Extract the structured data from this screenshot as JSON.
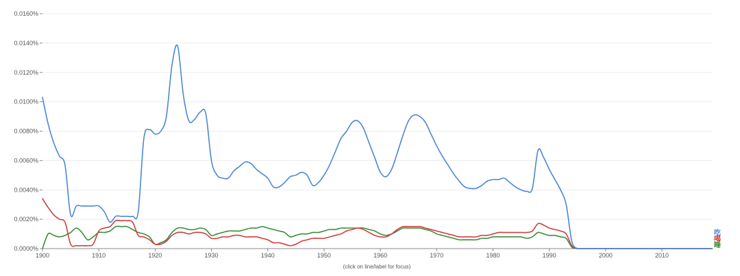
{
  "chart_data": {
    "type": "line",
    "title": "",
    "xlabel": "",
    "ylabel": "",
    "caption": "(click on line/label for focus)",
    "xlim": [
      1900,
      2019
    ],
    "ylim": [
      0,
      0.016
    ],
    "xticks": [
      1900,
      1910,
      1920,
      1930,
      1940,
      1950,
      1960,
      1970,
      1980,
      1990,
      2000,
      2010
    ],
    "xtick_labels": [
      "1900",
      "1910",
      "1920",
      "1930",
      "1940",
      "1950",
      "1960",
      "1970",
      "1980",
      "1990",
      "2000",
      "2010"
    ],
    "yticks": [
      0,
      0.002,
      0.004,
      0.006,
      0.008,
      0.01,
      0.012,
      0.014,
      0.016
    ],
    "ytick_labels": [
      "0.0000%",
      "0.0020%",
      "0.0040%",
      "0.0060%",
      "0.0080%",
      "0.0100%",
      "0.0120%",
      "0.0140%",
      "0.0160%"
    ],
    "grid": true,
    "series": [
      {
        "name": "吃",
        "color": "#4a86d8",
        "points": [
          [
            1900,
            0.0103
          ],
          [
            1901,
            0.0085
          ],
          [
            1902,
            0.0072
          ],
          [
            1903,
            0.0063
          ],
          [
            1904,
            0.0057
          ],
          [
            1905,
            0.0023
          ],
          [
            1906,
            0.0029
          ],
          [
            1907,
            0.0029
          ],
          [
            1908,
            0.0029
          ],
          [
            1909,
            0.0029
          ],
          [
            1910,
            0.0029
          ],
          [
            1911,
            0.0025
          ],
          [
            1912,
            0.0018
          ],
          [
            1913,
            0.0022
          ],
          [
            1914,
            0.0022
          ],
          [
            1915,
            0.0022
          ],
          [
            1916,
            0.0022
          ],
          [
            1917,
            0.0025
          ],
          [
            1918,
            0.0075
          ],
          [
            1919,
            0.0081
          ],
          [
            1920,
            0.0078
          ],
          [
            1921,
            0.008
          ],
          [
            1922,
            0.009
          ],
          [
            1923,
            0.0125
          ],
          [
            1924,
            0.0138
          ],
          [
            1925,
            0.0105
          ],
          [
            1926,
            0.0087
          ],
          [
            1927,
            0.0088
          ],
          [
            1928,
            0.0093
          ],
          [
            1929,
            0.0092
          ],
          [
            1930,
            0.006
          ],
          [
            1931,
            0.005
          ],
          [
            1932,
            0.0048
          ],
          [
            1933,
            0.0048
          ],
          [
            1934,
            0.0053
          ],
          [
            1935,
            0.0056
          ],
          [
            1936,
            0.0059
          ],
          [
            1937,
            0.0058
          ],
          [
            1938,
            0.0054
          ],
          [
            1939,
            0.0051
          ],
          [
            1940,
            0.0048
          ],
          [
            1941,
            0.0042
          ],
          [
            1942,
            0.0042
          ],
          [
            1943,
            0.0045
          ],
          [
            1944,
            0.0049
          ],
          [
            1945,
            0.005
          ],
          [
            1946,
            0.0052
          ],
          [
            1947,
            0.005
          ],
          [
            1948,
            0.0043
          ],
          [
            1949,
            0.0045
          ],
          [
            1950,
            0.005
          ],
          [
            1951,
            0.0057
          ],
          [
            1952,
            0.0066
          ],
          [
            1953,
            0.0075
          ],
          [
            1954,
            0.008
          ],
          [
            1955,
            0.0086
          ],
          [
            1956,
            0.0087
          ],
          [
            1957,
            0.0082
          ],
          [
            1958,
            0.0072
          ],
          [
            1959,
            0.0062
          ],
          [
            1960,
            0.0052
          ],
          [
            1961,
            0.0049
          ],
          [
            1962,
            0.0054
          ],
          [
            1963,
            0.0065
          ],
          [
            1964,
            0.0077
          ],
          [
            1965,
            0.0087
          ],
          [
            1966,
            0.0091
          ],
          [
            1967,
            0.009
          ],
          [
            1968,
            0.0086
          ],
          [
            1969,
            0.0078
          ],
          [
            1970,
            0.007
          ],
          [
            1971,
            0.0063
          ],
          [
            1972,
            0.0057
          ],
          [
            1973,
            0.0051
          ],
          [
            1974,
            0.0046
          ],
          [
            1975,
            0.0042
          ],
          [
            1976,
            0.0041
          ],
          [
            1977,
            0.0041
          ],
          [
            1978,
            0.0043
          ],
          [
            1979,
            0.0046
          ],
          [
            1980,
            0.0047
          ],
          [
            1981,
            0.0047
          ],
          [
            1982,
            0.0048
          ],
          [
            1983,
            0.0045
          ],
          [
            1984,
            0.0042
          ],
          [
            1985,
            0.004
          ],
          [
            1986,
            0.0039
          ],
          [
            1987,
            0.0041
          ],
          [
            1988,
            0.0067
          ],
          [
            1989,
            0.0062
          ],
          [
            1990,
            0.0054
          ],
          [
            1991,
            0.0047
          ],
          [
            1992,
            0.004
          ],
          [
            1993,
            0.003
          ],
          [
            1994,
            0.0005
          ],
          [
            1995,
            0.0
          ],
          [
            1996,
            0.0
          ],
          [
            1997,
            0.0
          ],
          [
            1998,
            0.0
          ],
          [
            1999,
            0.0
          ],
          [
            2000,
            0.0
          ]
        ]
      },
      {
        "name": "喝",
        "color": "#d23c3c",
        "points": [
          [
            1900,
            0.0034
          ],
          [
            1901,
            0.0028
          ],
          [
            1902,
            0.0023
          ],
          [
            1903,
            0.002
          ],
          [
            1904,
            0.0018
          ],
          [
            1905,
            0.0003
          ],
          [
            1906,
            0.0002
          ],
          [
            1907,
            0.0002
          ],
          [
            1908,
            0.0002
          ],
          [
            1909,
            0.0003
          ],
          [
            1910,
            0.0012
          ],
          [
            1911,
            0.0014
          ],
          [
            1912,
            0.0015
          ],
          [
            1913,
            0.0019
          ],
          [
            1914,
            0.0019
          ],
          [
            1915,
            0.0019
          ],
          [
            1916,
            0.0018
          ],
          [
            1917,
            0.0009
          ],
          [
            1918,
            0.0008
          ],
          [
            1919,
            0.0006
          ],
          [
            1920,
            0.0003
          ],
          [
            1921,
            0.0003
          ],
          [
            1922,
            0.0005
          ],
          [
            1923,
            0.0009
          ],
          [
            1924,
            0.0011
          ],
          [
            1925,
            0.0011
          ],
          [
            1926,
            0.001
          ],
          [
            1927,
            0.0011
          ],
          [
            1928,
            0.0011
          ],
          [
            1929,
            0.001
          ],
          [
            1930,
            0.0007
          ],
          [
            1931,
            0.0007
          ],
          [
            1932,
            0.0008
          ],
          [
            1933,
            0.0008
          ],
          [
            1934,
            0.0009
          ],
          [
            1935,
            0.0009
          ],
          [
            1936,
            0.0008
          ],
          [
            1937,
            0.0008
          ],
          [
            1938,
            0.0008
          ],
          [
            1939,
            0.0007
          ],
          [
            1940,
            0.0006
          ],
          [
            1941,
            0.0004
          ],
          [
            1942,
            0.0004
          ],
          [
            1943,
            0.0003
          ],
          [
            1944,
            0.0002
          ],
          [
            1945,
            0.0003
          ],
          [
            1946,
            0.0005
          ],
          [
            1947,
            0.0006
          ],
          [
            1948,
            0.0007
          ],
          [
            1949,
            0.0007
          ],
          [
            1950,
            0.0007
          ],
          [
            1951,
            0.0008
          ],
          [
            1952,
            0.0009
          ],
          [
            1953,
            0.001
          ],
          [
            1954,
            0.0012
          ],
          [
            1955,
            0.0013
          ],
          [
            1956,
            0.0014
          ],
          [
            1957,
            0.0013
          ],
          [
            1958,
            0.0011
          ],
          [
            1959,
            0.0009
          ],
          [
            1960,
            0.0008
          ],
          [
            1961,
            0.0008
          ],
          [
            1962,
            0.001
          ],
          [
            1963,
            0.0013
          ],
          [
            1964,
            0.0015
          ],
          [
            1965,
            0.0015
          ],
          [
            1966,
            0.0015
          ],
          [
            1967,
            0.0015
          ],
          [
            1968,
            0.0014
          ],
          [
            1969,
            0.0013
          ],
          [
            1970,
            0.0012
          ],
          [
            1971,
            0.0011
          ],
          [
            1972,
            0.001
          ],
          [
            1973,
            0.0009
          ],
          [
            1974,
            0.0008
          ],
          [
            1975,
            0.0008
          ],
          [
            1976,
            0.0008
          ],
          [
            1977,
            0.0008
          ],
          [
            1978,
            0.0009
          ],
          [
            1979,
            0.0009
          ],
          [
            1980,
            0.001
          ],
          [
            1981,
            0.0011
          ],
          [
            1982,
            0.0011
          ],
          [
            1983,
            0.0011
          ],
          [
            1984,
            0.0011
          ],
          [
            1985,
            0.0011
          ],
          [
            1986,
            0.0011
          ],
          [
            1987,
            0.0012
          ],
          [
            1988,
            0.0017
          ],
          [
            1989,
            0.0016
          ],
          [
            1990,
            0.0014
          ],
          [
            1991,
            0.0013
          ],
          [
            1992,
            0.0012
          ],
          [
            1993,
            0.001
          ],
          [
            1994,
            0.0002
          ],
          [
            1995,
            0.0
          ],
          [
            1996,
            0.0
          ],
          [
            1997,
            0.0
          ],
          [
            1998,
            0.0
          ],
          [
            1999,
            0.0
          ],
          [
            2000,
            0.0
          ]
        ]
      },
      {
        "name": "睡",
        "color": "#3a8c3a",
        "points": [
          [
            1900,
            0.0
          ],
          [
            1901,
            0.001
          ],
          [
            1902,
            0.0009
          ],
          [
            1903,
            0.0008
          ],
          [
            1904,
            0.0009
          ],
          [
            1905,
            0.0011
          ],
          [
            1906,
            0.0014
          ],
          [
            1907,
            0.0011
          ],
          [
            1908,
            0.0006
          ],
          [
            1909,
            0.0008
          ],
          [
            1910,
            0.0011
          ],
          [
            1911,
            0.0011
          ],
          [
            1912,
            0.0012
          ],
          [
            1913,
            0.0015
          ],
          [
            1914,
            0.0015
          ],
          [
            1915,
            0.0015
          ],
          [
            1916,
            0.0013
          ],
          [
            1917,
            0.0011
          ],
          [
            1918,
            0.001
          ],
          [
            1919,
            0.0008
          ],
          [
            1920,
            0.0003
          ],
          [
            1921,
            0.0004
          ],
          [
            1922,
            0.0006
          ],
          [
            1923,
            0.0011
          ],
          [
            1924,
            0.0014
          ],
          [
            1925,
            0.0014
          ],
          [
            1926,
            0.0013
          ],
          [
            1927,
            0.0013
          ],
          [
            1928,
            0.0014
          ],
          [
            1929,
            0.0013
          ],
          [
            1930,
            0.0009
          ],
          [
            1931,
            0.001
          ],
          [
            1932,
            0.0011
          ],
          [
            1933,
            0.0012
          ],
          [
            1934,
            0.0012
          ],
          [
            1935,
            0.0012
          ],
          [
            1936,
            0.0013
          ],
          [
            1937,
            0.0014
          ],
          [
            1938,
            0.0014
          ],
          [
            1939,
            0.0015
          ],
          [
            1940,
            0.0014
          ],
          [
            1941,
            0.0013
          ],
          [
            1942,
            0.0012
          ],
          [
            1943,
            0.0011
          ],
          [
            1944,
            0.0008
          ],
          [
            1945,
            0.0009
          ],
          [
            1946,
            0.001
          ],
          [
            1947,
            0.001
          ],
          [
            1948,
            0.0011
          ],
          [
            1949,
            0.0011
          ],
          [
            1950,
            0.0012
          ],
          [
            1951,
            0.0013
          ],
          [
            1952,
            0.0013
          ],
          [
            1953,
            0.0014
          ],
          [
            1954,
            0.0014
          ],
          [
            1955,
            0.0014
          ],
          [
            1956,
            0.0014
          ],
          [
            1957,
            0.0014
          ],
          [
            1958,
            0.0013
          ],
          [
            1959,
            0.0012
          ],
          [
            1960,
            0.001
          ],
          [
            1961,
            0.0009
          ],
          [
            1962,
            0.001
          ],
          [
            1963,
            0.0012
          ],
          [
            1964,
            0.0014
          ],
          [
            1965,
            0.0014
          ],
          [
            1966,
            0.0014
          ],
          [
            1967,
            0.0014
          ],
          [
            1968,
            0.0013
          ],
          [
            1969,
            0.0012
          ],
          [
            1970,
            0.001
          ],
          [
            1971,
            0.0009
          ],
          [
            1972,
            0.0008
          ],
          [
            1973,
            0.0007
          ],
          [
            1974,
            0.0006
          ],
          [
            1975,
            0.0006
          ],
          [
            1976,
            0.0006
          ],
          [
            1977,
            0.0006
          ],
          [
            1978,
            0.0007
          ],
          [
            1979,
            0.0007
          ],
          [
            1980,
            0.0008
          ],
          [
            1981,
            0.0008
          ],
          [
            1982,
            0.0008
          ],
          [
            1983,
            0.0008
          ],
          [
            1984,
            0.0008
          ],
          [
            1985,
            0.0008
          ],
          [
            1986,
            0.0007
          ],
          [
            1987,
            0.0008
          ],
          [
            1988,
            0.0011
          ],
          [
            1989,
            0.001
          ],
          [
            1990,
            0.0009
          ],
          [
            1991,
            0.0009
          ],
          [
            1992,
            0.0008
          ],
          [
            1993,
            0.0007
          ],
          [
            1994,
            0.0001
          ],
          [
            1995,
            0.0
          ],
          [
            1996,
            0.0
          ],
          [
            1997,
            0.0
          ],
          [
            1998,
            0.0
          ],
          [
            1999,
            0.0
          ],
          [
            2000,
            0.0
          ]
        ]
      }
    ]
  }
}
